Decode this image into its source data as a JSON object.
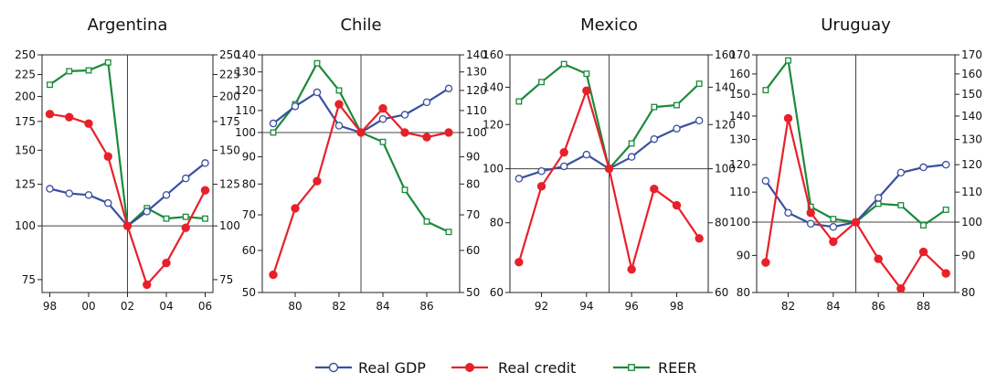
{
  "colors": {
    "gdp": "#3a4fa0",
    "credit": "#e8202a",
    "reer": "#1b8a3a"
  },
  "legend": [
    {
      "key": "gdp",
      "label": "Real GDP",
      "marker": "open-circle"
    },
    {
      "key": "credit",
      "label": "Real credit",
      "marker": "filled-circle"
    },
    {
      "key": "reer",
      "label": "REER",
      "marker": "open-square"
    }
  ],
  "chart_data": [
    {
      "type": "line",
      "title": "Argentina",
      "scale": "log",
      "x_range": [
        1997.6,
        2006.4
      ],
      "y_range": [
        70,
        250
      ],
      "y_ticks": [
        75,
        100,
        125,
        150,
        175,
        200,
        225,
        250
      ],
      "x_ticks": [
        {
          "v": 1998,
          "label": "98"
        },
        {
          "v": 2000,
          "label": "00"
        },
        {
          "v": 2002,
          "label": "02"
        },
        {
          "v": 2004,
          "label": "04"
        },
        {
          "v": 2006,
          "label": "06"
        }
      ],
      "ref_x": 2002,
      "ref_y": 100,
      "series": [
        {
          "key": "gdp",
          "x": [
            1998,
            1999,
            2000,
            2001,
            2002,
            2003,
            2004,
            2005,
            2006
          ],
          "y": [
            122,
            119,
            118,
            113,
            100,
            108,
            118,
            129,
            140
          ]
        },
        {
          "key": "credit",
          "x": [
            1998,
            1999,
            2000,
            2001,
            2002,
            2003,
            2004,
            2005,
            2006
          ],
          "y": [
            182,
            179,
            173,
            145,
            100,
            73,
            82,
            99,
            121
          ]
        },
        {
          "key": "reer",
          "x": [
            1998,
            1999,
            2000,
            2001,
            2002,
            2003,
            2004,
            2005,
            2006
          ],
          "y": [
            213,
            229,
            230,
            240,
            100,
            110,
            104,
            105,
            104
          ]
        }
      ]
    },
    {
      "type": "line",
      "title": "Chile",
      "scale": "log",
      "x_range": [
        1978.5,
        1987.5
      ],
      "y_range": [
        50,
        140
      ],
      "y_ticks": [
        50,
        60,
        70,
        80,
        90,
        100,
        110,
        120,
        130,
        140
      ],
      "x_ticks": [
        {
          "v": 1980,
          "label": "80"
        },
        {
          "v": 1982,
          "label": "82"
        },
        {
          "v": 1984,
          "label": "84"
        },
        {
          "v": 1986,
          "label": "86"
        }
      ],
      "ref_x": 1983,
      "ref_y": 100,
      "series": [
        {
          "key": "gdp",
          "x": [
            1979,
            1980,
            1981,
            1982,
            1983,
            1984,
            1985,
            1986,
            1987
          ],
          "y": [
            104,
            112,
            119,
            103,
            100,
            106,
            108,
            114,
            121
          ]
        },
        {
          "key": "credit",
          "x": [
            1979,
            1980,
            1981,
            1982,
            1983,
            1984,
            1985,
            1986,
            1987
          ],
          "y": [
            54,
            72,
            81,
            113,
            100,
            111,
            100,
            98,
            100
          ]
        },
        {
          "key": "reer",
          "x": [
            1979,
            1980,
            1981,
            1982,
            1983,
            1984,
            1985,
            1986,
            1987
          ],
          "y": [
            100,
            113,
            135,
            120,
            100,
            96,
            78,
            68,
            65
          ]
        }
      ]
    },
    {
      "type": "line",
      "title": "Mexico",
      "scale": "log",
      "x_range": [
        1990.6,
        1999.4
      ],
      "y_range": [
        60,
        160
      ],
      "y_ticks": [
        60,
        80,
        100,
        120,
        140,
        160
      ],
      "x_ticks": [
        {
          "v": 1992,
          "label": "92"
        },
        {
          "v": 1994,
          "label": "94"
        },
        {
          "v": 1996,
          "label": "96"
        },
        {
          "v": 1998,
          "label": "98"
        }
      ],
      "ref_x": 1995,
      "ref_y": 100,
      "series": [
        {
          "key": "gdp",
          "x": [
            1991,
            1992,
            1993,
            1994,
            1995,
            1996,
            1997,
            1998,
            1999
          ],
          "y": [
            96,
            99,
            101,
            106,
            100,
            105,
            113,
            118,
            122
          ]
        },
        {
          "key": "credit",
          "x": [
            1991,
            1992,
            1993,
            1994,
            1995,
            1996,
            1997,
            1998,
            1999
          ],
          "y": [
            68,
            93,
            107,
            138,
            100,
            66,
            92,
            86,
            75
          ]
        },
        {
          "key": "reer",
          "x": [
            1991,
            1992,
            1993,
            1994,
            1995,
            1996,
            1997,
            1998,
            1999
          ],
          "y": [
            132,
            143,
            154,
            148,
            100,
            111,
            129,
            130,
            142
          ]
        }
      ]
    },
    {
      "type": "line",
      "title": "Uruguay",
      "scale": "log",
      "x_range": [
        1980.6,
        1989.4
      ],
      "y_range": [
        80,
        170
      ],
      "y_ticks": [
        80,
        90,
        100,
        110,
        120,
        130,
        140,
        150,
        160,
        170
      ],
      "x_ticks": [
        {
          "v": 1982,
          "label": "82"
        },
        {
          "v": 1984,
          "label": "84"
        },
        {
          "v": 1986,
          "label": "86"
        },
        {
          "v": 1988,
          "label": "88"
        }
      ],
      "ref_x": 1985,
      "ref_y": 100,
      "series": [
        {
          "key": "gdp",
          "x": [
            1981,
            1982,
            1983,
            1984,
            1985,
            1986,
            1987,
            1988,
            1989
          ],
          "y": [
            114,
            103,
            99.5,
            98.5,
            100,
            108,
            117,
            119,
            120
          ]
        },
        {
          "key": "credit",
          "x": [
            1981,
            1982,
            1983,
            1984,
            1985,
            1986,
            1987,
            1988,
            1989
          ],
          "y": [
            88,
            139,
            103,
            94,
            100,
            89,
            81,
            91,
            85
          ]
        },
        {
          "key": "reer",
          "x": [
            1981,
            1982,
            1983,
            1984,
            1985,
            1986,
            1987,
            1988,
            1989
          ],
          "y": [
            152,
            167,
            105,
            101,
            100,
            106,
            105.5,
            99,
            104
          ]
        }
      ]
    }
  ]
}
